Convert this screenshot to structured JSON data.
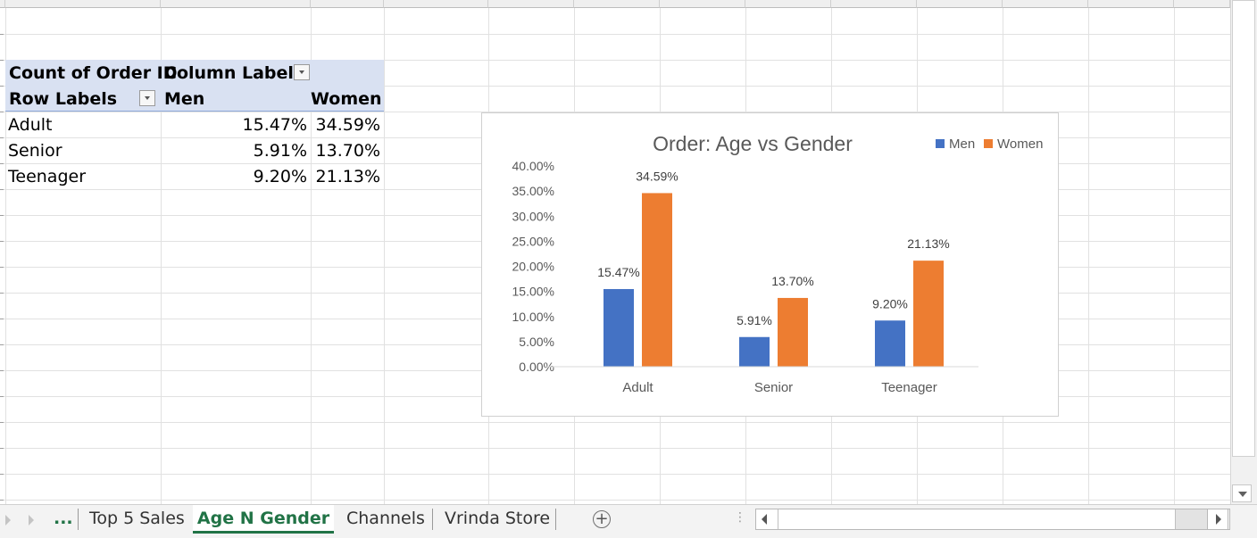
{
  "pivot": {
    "header_value_label": "Count of Order ID",
    "header_column_labels": "Column Labels",
    "row_labels": "Row Labels",
    "col_men": "Men",
    "col_women": "Women",
    "rows": [
      {
        "label": "Adult",
        "men": "15.47%",
        "women": "34.59%"
      },
      {
        "label": "Senior",
        "men": "5.91%",
        "women": "13.70%"
      },
      {
        "label": "Teenager",
        "men": "9.20%",
        "women": "21.13%"
      }
    ]
  },
  "chart_data": {
    "type": "bar",
    "title": "Order: Age vs Gender",
    "categories": [
      "Adult",
      "Senior",
      "Teenager"
    ],
    "series": [
      {
        "name": "Men",
        "values": [
          15.47,
          5.91,
          9.2
        ],
        "labels": [
          "15.47%",
          "5.91%",
          "9.20%"
        ],
        "color": "#4472c4"
      },
      {
        "name": "Women",
        "values": [
          34.59,
          13.7,
          21.13
        ],
        "labels": [
          "34.59%",
          "13.70%",
          "21.13%"
        ],
        "color": "#ed7d31"
      }
    ],
    "ylim": [
      0,
      40
    ],
    "yticks": [
      "0.00%",
      "5.00%",
      "10.00%",
      "15.00%",
      "20.00%",
      "25.00%",
      "30.00%",
      "35.00%",
      "40.00%"
    ],
    "legend_position": "top-right",
    "grid": false
  },
  "tabs": {
    "ellipsis": "...",
    "sheets": [
      {
        "label": "Top 5 Sales",
        "active": false
      },
      {
        "label": "Age N Gender",
        "active": true
      },
      {
        "label": "Channels",
        "active": false
      },
      {
        "label": "Vrinda Store",
        "active": false
      }
    ],
    "add": "+"
  },
  "colors": {
    "accent": "#217346",
    "pivot_header": "#d9e1f2",
    "men": "#4472c4",
    "women": "#ed7d31"
  }
}
